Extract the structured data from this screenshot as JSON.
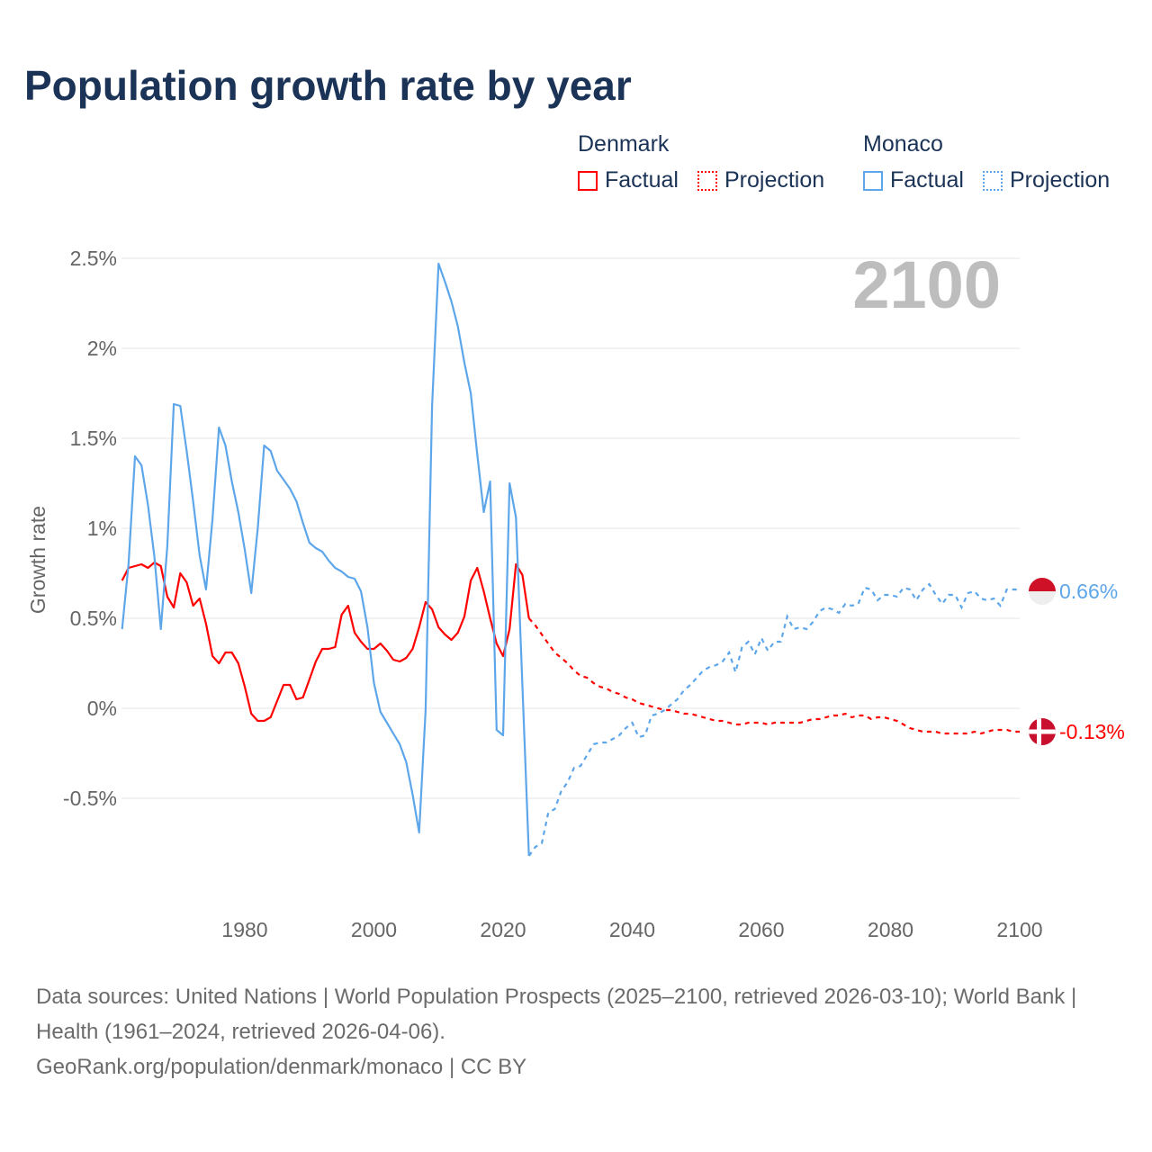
{
  "title": "Population growth rate by year",
  "legend": {
    "groups": [
      {
        "name": "Denmark",
        "color": "#ff0000",
        "factual": "Factual",
        "projection": "Projection"
      },
      {
        "name": "Monaco",
        "color": "#5ea6ea",
        "factual": "Factual",
        "projection": "Projection"
      }
    ]
  },
  "chart_data": {
    "type": "line",
    "title": "Population growth rate by year",
    "ylabel": "Growth rate",
    "xlabel": "",
    "year_label": "2100",
    "xlim": [
      1961,
      2100
    ],
    "ylim": [
      -1.1,
      2.7
    ],
    "x_ticks": [
      1980,
      2000,
      2020,
      2040,
      2060,
      2080,
      2100
    ],
    "y_ticks": [
      {
        "v": 2.5,
        "label": "2.5%"
      },
      {
        "v": 2,
        "label": "2%"
      },
      {
        "v": 1.5,
        "label": "1.5%"
      },
      {
        "v": 1,
        "label": "1%"
      },
      {
        "v": 0.5,
        "label": "0.5%"
      },
      {
        "v": 0,
        "label": "0%"
      },
      {
        "v": -0.5,
        "label": "-0.5%"
      }
    ],
    "grid": true,
    "legend_position": "top-right",
    "series": [
      {
        "name": "Denmark",
        "color": "#ff0000",
        "end_label": "-0.13%",
        "factual_start": 1961,
        "factual": [
          0.71,
          0.78,
          0.79,
          0.8,
          0.78,
          0.81,
          0.79,
          0.62,
          0.56,
          0.75,
          0.7,
          0.57,
          0.61,
          0.47,
          0.29,
          0.25,
          0.31,
          0.31,
          0.25,
          0.12,
          -0.03,
          -0.07,
          -0.07,
          -0.05,
          0.04,
          0.13,
          0.13,
          0.05,
          0.06,
          0.16,
          0.26,
          0.33,
          0.33,
          0.34,
          0.52,
          0.57,
          0.42,
          0.37,
          0.33,
          0.33,
          0.36,
          0.32,
          0.27,
          0.26,
          0.28,
          0.33,
          0.45,
          0.59,
          0.55,
          0.45,
          0.41,
          0.38,
          0.42,
          0.51,
          0.71,
          0.78,
          0.65,
          0.5,
          0.36,
          0.29,
          0.44,
          0.8,
          0.74,
          0.5
        ],
        "projection_start": 2025,
        "projection": [
          0.46,
          0.41,
          0.36,
          0.31,
          0.28,
          0.25,
          0.21,
          0.18,
          0.17,
          0.14,
          0.12,
          0.11,
          0.09,
          0.08,
          0.06,
          0.05,
          0.03,
          0.02,
          0.01,
          0.0,
          -0.01,
          -0.01,
          -0.02,
          -0.03,
          -0.03,
          -0.04,
          -0.05,
          -0.06,
          -0.07,
          -0.07,
          -0.08,
          -0.09,
          -0.09,
          -0.08,
          -0.08,
          -0.08,
          -0.09,
          -0.08,
          -0.08,
          -0.08,
          -0.08,
          -0.08,
          -0.07,
          -0.06,
          -0.06,
          -0.05,
          -0.04,
          -0.04,
          -0.03,
          -0.05,
          -0.04,
          -0.04,
          -0.06,
          -0.05,
          -0.05,
          -0.06,
          -0.07,
          -0.09,
          -0.11,
          -0.12,
          -0.13,
          -0.13,
          -0.13,
          -0.14,
          -0.14,
          -0.14,
          -0.14,
          -0.14,
          -0.13,
          -0.14,
          -0.13,
          -0.12,
          -0.12,
          -0.12,
          -0.13,
          -0.13
        ]
      },
      {
        "name": "Monaco",
        "color": "#5ea6ea",
        "end_label": "0.66%",
        "factual_start": 1961,
        "factual": [
          0.44,
          0.8,
          1.4,
          1.35,
          1.13,
          0.84,
          0.44,
          0.9,
          1.69,
          1.68,
          1.43,
          1.15,
          0.85,
          0.66,
          1.05,
          1.56,
          1.46,
          1.26,
          1.09,
          0.88,
          0.64,
          1.0,
          1.46,
          1.43,
          1.32,
          1.27,
          1.22,
          1.15,
          1.03,
          0.92,
          0.89,
          0.87,
          0.82,
          0.78,
          0.76,
          0.73,
          0.72,
          0.65,
          0.45,
          0.14,
          -0.02,
          -0.08,
          -0.14,
          -0.2,
          -0.3,
          -0.48,
          -0.69,
          -0.01,
          1.68,
          2.47,
          2.37,
          2.26,
          2.12,
          1.92,
          1.75,
          1.41,
          1.09,
          1.26,
          -0.12,
          -0.15,
          1.25,
          1.06,
          0.12,
          -0.82
        ],
        "projection_start": 2025,
        "projection": [
          -0.77,
          -0.75,
          -0.58,
          -0.56,
          -0.46,
          -0.41,
          -0.33,
          -0.32,
          -0.26,
          -0.2,
          -0.19,
          -0.19,
          -0.17,
          -0.15,
          -0.11,
          -0.08,
          -0.16,
          -0.15,
          -0.04,
          -0.03,
          -0.01,
          0.02,
          0.05,
          0.1,
          0.13,
          0.17,
          0.21,
          0.23,
          0.24,
          0.26,
          0.31,
          0.2,
          0.34,
          0.37,
          0.3,
          0.39,
          0.32,
          0.37,
          0.37,
          0.51,
          0.44,
          0.45,
          0.44,
          0.48,
          0.54,
          0.56,
          0.55,
          0.53,
          0.58,
          0.57,
          0.58,
          0.67,
          0.66,
          0.6,
          0.63,
          0.63,
          0.62,
          0.67,
          0.66,
          0.6,
          0.66,
          0.69,
          0.63,
          0.58,
          0.63,
          0.63,
          0.56,
          0.64,
          0.65,
          0.61,
          0.6,
          0.61,
          0.57,
          0.66,
          0.66,
          0.66
        ]
      }
    ]
  },
  "footer": {
    "sources": "Data sources: United Nations | World Population Prospects (2025–2100, retrieved 2026-03-10); World Bank | Health (1961–2024, retrieved 2026-04-06).",
    "credit": "GeoRank.org/population/denmark/monaco | CC BY"
  }
}
